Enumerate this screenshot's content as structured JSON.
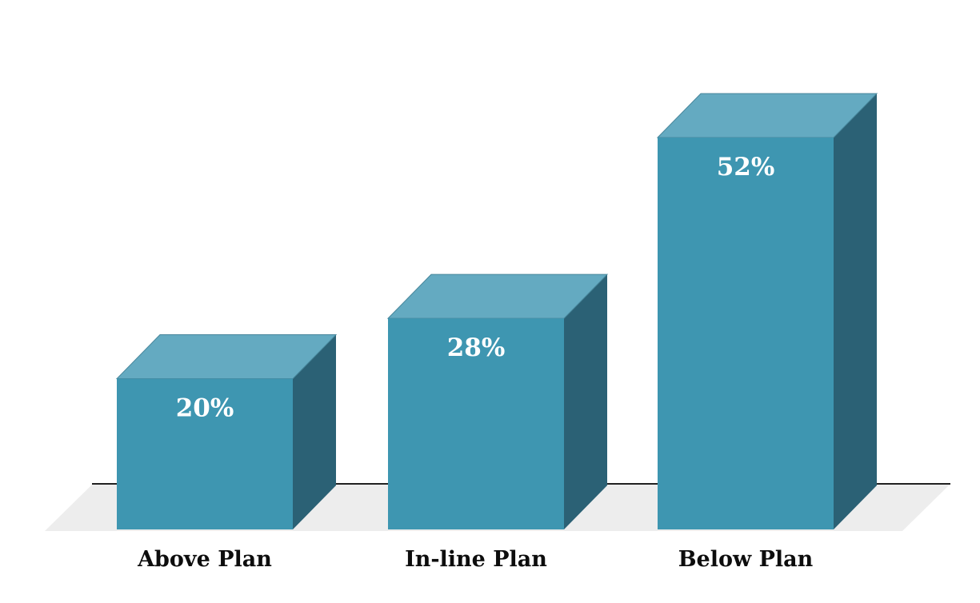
{
  "page": {
    "background": "#FFFFFF"
  },
  "chart_data": {
    "type": "bar",
    "style": "3d-oblique-column",
    "title": "",
    "xlabel": "",
    "ylabel": "",
    "legend": "none",
    "grid": false,
    "axes_visible": "baseline-only",
    "categories": [
      "Above Plan",
      "In-line Plan",
      "Below Plan"
    ],
    "values": [
      20,
      28,
      52
    ],
    "value_labels": [
      "20%",
      "28%",
      "52%"
    ],
    "value_unit": "%",
    "colors": {
      "bar_front": "#3E96B1",
      "bar_top": "#64AAC1",
      "bar_side": "#2B6175",
      "bar_top_edge": "#47869B",
      "floor": "#EDEDED",
      "baseline": "#212121",
      "value_label_text": "#FFFFFF",
      "category_label_text": "#0D0D0D",
      "background": "#FFFFFF"
    }
  }
}
